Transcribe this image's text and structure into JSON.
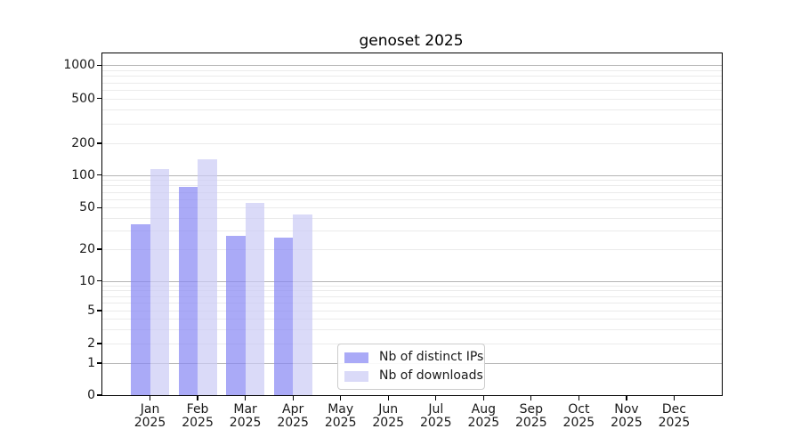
{
  "chart_data": {
    "type": "bar",
    "title": "genoset 2025",
    "categories": [
      "Jan",
      "Feb",
      "Mar",
      "Apr",
      "May",
      "Jun",
      "Jul",
      "Aug",
      "Sep",
      "Oct",
      "Nov",
      "Dec"
    ],
    "category_year": "2025",
    "series": [
      {
        "name": "Nb of distinct IPs",
        "color": "rgba(134,134,244,0.7)",
        "solid_color": "#aaaaf7",
        "values": [
          35,
          78,
          27,
          26,
          0,
          0,
          0,
          0,
          0,
          0,
          0,
          0
        ]
      },
      {
        "name": "Nb of downloads",
        "color": "rgba(202,202,245,0.7)",
        "solid_color": "#dadaf8",
        "values": [
          115,
          140,
          55,
          43,
          0,
          0,
          0,
          0,
          0,
          0,
          0,
          0
        ]
      }
    ],
    "yticks": [
      0,
      1,
      2,
      5,
      10,
      20,
      50,
      100,
      200,
      500,
      1000
    ],
    "ylim": [
      0,
      1000
    ],
    "yscale": "log-like with linear segment below 1",
    "grid": "horizontal, major at powers of 10, faint log minors",
    "legend_position": "lower center"
  },
  "colors": {
    "axis": "#000000",
    "text": "#1a1a1a",
    "major_grid": "#b5b5b5",
    "minor_grid": "#ebebeb",
    "legend_border": "#cccccc",
    "background": "#ffffff"
  }
}
